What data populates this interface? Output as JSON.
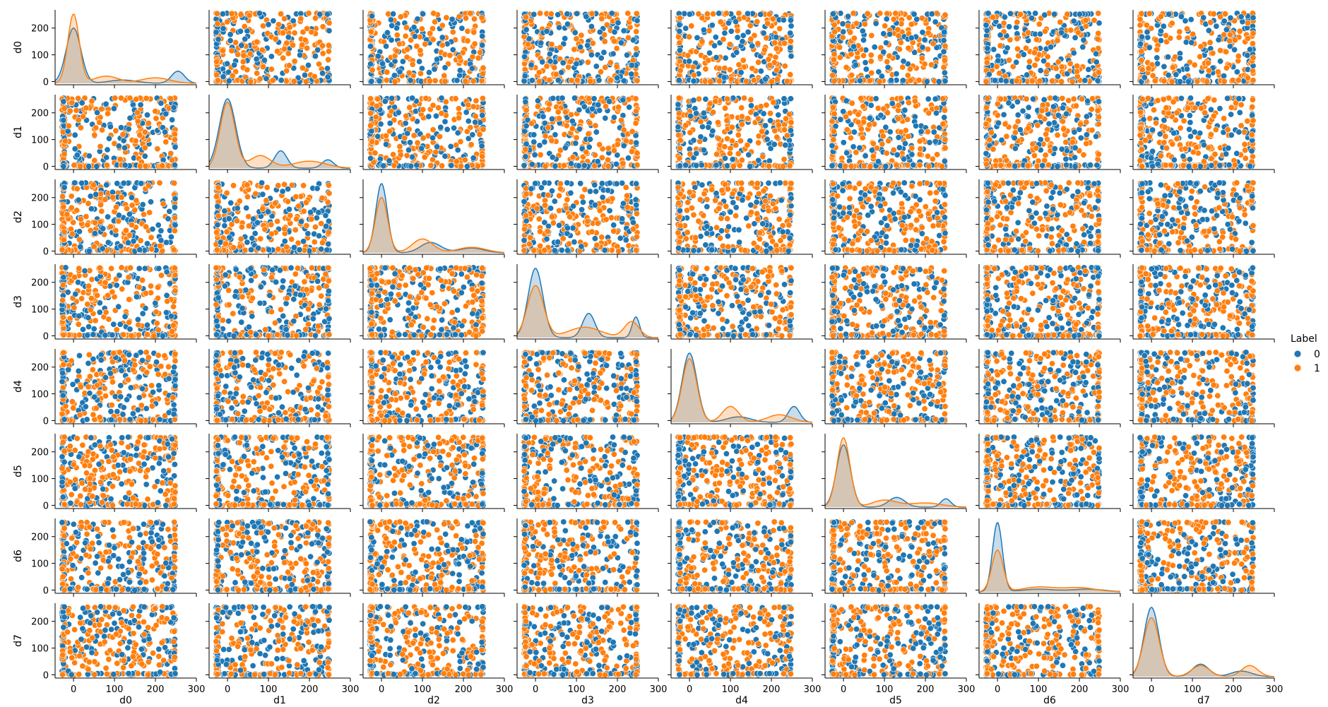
{
  "chart_data": {
    "type": "scatter",
    "variables": [
      "d0",
      "d1",
      "d2",
      "d3",
      "d4",
      "d5",
      "d6",
      "d7"
    ],
    "hue": {
      "title": "Label",
      "levels": [
        {
          "name": "0",
          "color": "#1f77b4"
        },
        {
          "name": "1",
          "color": "#ff7f0e"
        }
      ]
    },
    "diag_kind": "kde",
    "offdiag_kind": "scatter",
    "value_range": [
      0,
      255
    ],
    "y_ticks": [
      "0",
      "100",
      "200"
    ],
    "x_ticks": [
      "0",
      "100",
      "200",
      "300"
    ],
    "ylim": [
      -12,
      268
    ],
    "xlim": [
      -45,
      300
    ],
    "diagonal_kde": [
      {
        "variable": "d0",
        "series": [
          {
            "name": "0",
            "peaks": [
              [
                0,
                1.0,
                18
              ],
              [
                120,
                0.06,
                35
              ],
              [
                255,
                0.22,
                16
              ]
            ]
          },
          {
            "name": "1",
            "peaks": [
              [
                0,
                1.25,
                14
              ],
              [
                80,
                0.13,
                30
              ],
              [
                200,
                0.1,
                35
              ]
            ]
          }
        ]
      },
      {
        "variable": "d1",
        "series": [
          {
            "name": "0",
            "peaks": [
              [
                0,
                1.0,
                20
              ],
              [
                130,
                0.25,
                15
              ],
              [
                245,
                0.12,
                14
              ]
            ]
          },
          {
            "name": "1",
            "peaks": [
              [
                0,
                0.95,
                18
              ],
              [
                80,
                0.18,
                25
              ],
              [
                200,
                0.1,
                40
              ]
            ]
          }
        ]
      },
      {
        "variable": "d2",
        "series": [
          {
            "name": "0",
            "peaks": [
              [
                0,
                1.0,
                14
              ],
              [
                120,
                0.15,
                25
              ],
              [
                220,
                0.07,
                30
              ]
            ]
          },
          {
            "name": "1",
            "peaks": [
              [
                0,
                0.8,
                15
              ],
              [
                100,
                0.2,
                25
              ],
              [
                220,
                0.08,
                35
              ]
            ]
          }
        ]
      },
      {
        "variable": "d3",
        "series": [
          {
            "name": "0",
            "peaks": [
              [
                0,
                1.0,
                18
              ],
              [
                130,
                0.35,
                15
              ],
              [
                245,
                0.3,
                9
              ]
            ]
          },
          {
            "name": "1",
            "peaks": [
              [
                0,
                0.75,
                20
              ],
              [
                120,
                0.15,
                40
              ],
              [
                235,
                0.23,
                18
              ]
            ]
          }
        ]
      },
      {
        "variable": "d4",
        "series": [
          {
            "name": "0",
            "peaks": [
              [
                0,
                1.0,
                18
              ],
              [
                120,
                0.08,
                30
              ],
              [
                255,
                0.23,
                14
              ]
            ]
          },
          {
            "name": "1",
            "peaks": [
              [
                0,
                0.92,
                18
              ],
              [
                100,
                0.23,
                20
              ],
              [
                220,
                0.11,
                30
              ]
            ]
          }
        ]
      },
      {
        "variable": "d5",
        "series": [
          {
            "name": "0",
            "peaks": [
              [
                0,
                0.9,
                17
              ],
              [
                130,
                0.14,
                20
              ],
              [
                250,
                0.12,
                12
              ]
            ]
          },
          {
            "name": "1",
            "peaks": [
              [
                0,
                1.0,
                16
              ],
              [
                100,
                0.1,
                30
              ],
              [
                200,
                0.06,
                40
              ]
            ]
          }
        ]
      },
      {
        "variable": "d6",
        "series": [
          {
            "name": "0",
            "peaks": [
              [
                0,
                1.0,
                12
              ],
              [
                100,
                0.04,
                40
              ],
              [
                220,
                0.04,
                40
              ]
            ]
          },
          {
            "name": "1",
            "peaks": [
              [
                0,
                0.6,
                14
              ],
              [
                100,
                0.07,
                40
              ],
              [
                200,
                0.06,
                40
              ]
            ]
          }
        ]
      },
      {
        "variable": "d7",
        "series": [
          {
            "name": "0",
            "peaks": [
              [
                0,
                1.0,
                18
              ],
              [
                120,
                0.18,
                20
              ],
              [
                220,
                0.08,
                25
              ]
            ]
          },
          {
            "name": "1",
            "peaks": [
              [
                0,
                0.85,
                19
              ],
              [
                120,
                0.16,
                22
              ],
              [
                240,
                0.16,
                20
              ]
            ]
          }
        ]
      }
    ]
  }
}
